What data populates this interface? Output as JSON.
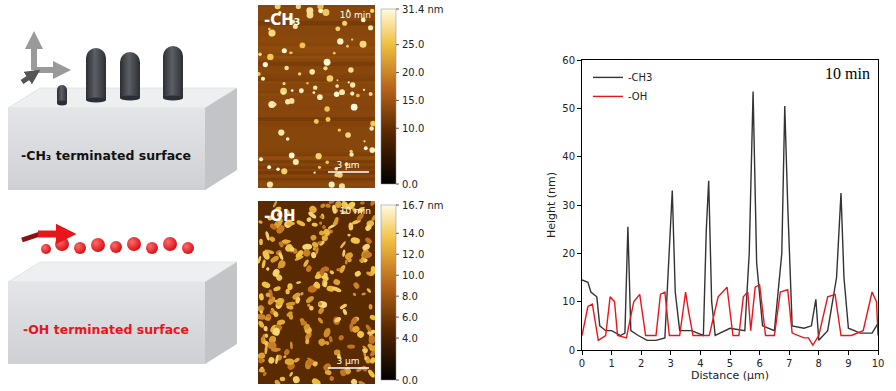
{
  "schematic": [
    {
      "label": "-CH₃ terminated surface"
    },
    {
      "label": "-OH terminated surface"
    }
  ],
  "afm_images": [
    {
      "label": "-CH₃",
      "time": "10 min",
      "scale_bar": "3 μm",
      "colorbar": {
        "range": [
          0,
          31.4
        ],
        "ticks": [
          {
            "value": 31.4,
            "label": "31.4 nm"
          },
          {
            "value": 25,
            "label": "25.0"
          },
          {
            "value": 20,
            "label": "20.0"
          },
          {
            "value": 15,
            "label": "15.0"
          },
          {
            "value": 10,
            "label": "10.0"
          },
          {
            "value": 0,
            "label": "0.0"
          }
        ]
      }
    },
    {
      "label": "-OH",
      "time": "10 min",
      "scale_bar": "3 μm",
      "colorbar": {
        "range": [
          0,
          16.7
        ],
        "ticks": [
          {
            "value": 16.7,
            "label": "16.7 nm"
          },
          {
            "value": 14,
            "label": "14.0"
          },
          {
            "value": 12,
            "label": "12.0"
          },
          {
            "value": 10,
            "label": "10.0"
          },
          {
            "value": 8,
            "label": "8.0"
          },
          {
            "value": 6,
            "label": "6.0"
          },
          {
            "value": 4,
            "label": "4.0"
          },
          {
            "value": 0,
            "label": "0.0"
          }
        ]
      }
    }
  ],
  "chart_data": {
    "type": "line",
    "annotations": [
      "10 min"
    ],
    "x_label": "Distance (μm)",
    "y_label": "Height (nm)",
    "xlim": [
      0,
      10
    ],
    "xticks": [
      0,
      1,
      2,
      3,
      4,
      5,
      6,
      7,
      8,
      9,
      10
    ],
    "ylim": [
      0,
      60
    ],
    "yticks": [
      0,
      10,
      20,
      30,
      40,
      50,
      60
    ],
    "grid": false,
    "legend": "top-left",
    "series": [
      {
        "name": "-CH3",
        "color": "#333333",
        "x": [
          0,
          0.2,
          0.3,
          0.5,
          0.6,
          0.8,
          1.0,
          1.3,
          1.45,
          1.55,
          1.65,
          1.9,
          2.2,
          2.5,
          2.8,
          2.95,
          3.05,
          3.15,
          3.3,
          3.7,
          4.1,
          4.2,
          4.28,
          4.38,
          4.5,
          5.0,
          5.5,
          5.65,
          5.78,
          5.9,
          6.1,
          6.5,
          6.75,
          6.85,
          6.95,
          7.1,
          7.5,
          7.75,
          7.9,
          8.0,
          8.3,
          8.6,
          8.75,
          8.85,
          9.0,
          9.4,
          9.8,
          10
        ],
        "values": [
          14.5,
          14,
          12,
          11,
          5,
          4,
          4,
          3,
          3.5,
          25.5,
          4,
          3,
          2,
          2,
          2.5,
          20,
          33,
          12,
          4,
          4,
          3,
          25,
          35,
          10,
          3,
          4.5,
          4,
          20,
          53.5,
          18,
          5,
          4,
          20,
          50.5,
          30,
          5,
          4.5,
          5,
          10.5,
          2,
          4,
          15,
          32.5,
          15,
          4.5,
          3.5,
          3.5,
          5.5
        ]
      },
      {
        "name": "-OH",
        "color": "#e8161b",
        "x": [
          0,
          0.2,
          0.35,
          0.55,
          0.8,
          0.95,
          1.1,
          1.2,
          1.5,
          1.75,
          1.95,
          2.15,
          2.5,
          2.65,
          2.8,
          2.95,
          3.3,
          3.5,
          3.6,
          3.75,
          4.0,
          4.3,
          4.6,
          4.9,
          5.1,
          5.3,
          5.45,
          5.6,
          5.7,
          5.85,
          6.0,
          6.2,
          6.5,
          6.7,
          6.95,
          7.1,
          7.5,
          7.65,
          7.8,
          8.0,
          8.3,
          8.55,
          8.75,
          9.1,
          9.5,
          9.8,
          9.95,
          10
        ],
        "values": [
          3,
          9,
          9.5,
          2,
          3,
          11,
          10,
          3,
          2.5,
          10,
          11.5,
          3,
          3,
          11.5,
          12,
          3,
          3,
          12,
          8,
          3,
          3,
          3,
          11,
          13,
          3,
          3,
          11,
          12,
          4,
          13,
          13.5,
          3,
          3,
          12,
          12.5,
          3.5,
          2.5,
          2.5,
          1,
          3,
          11,
          11.5,
          3,
          3,
          4,
          12,
          10,
          3
        ]
      }
    ]
  }
}
